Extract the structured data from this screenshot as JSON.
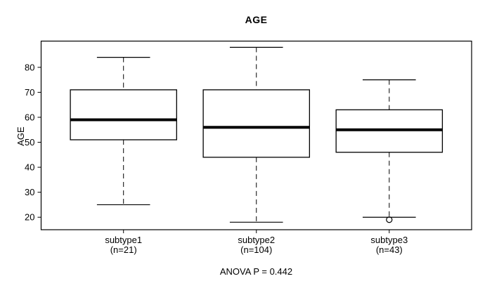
{
  "chart_data": {
    "type": "boxplot",
    "title": "AGE",
    "ylabel": "AGE",
    "footer": "ANOVA P = 0.442",
    "yticks": [
      20,
      30,
      40,
      50,
      60,
      70,
      80
    ],
    "ylim": [
      15,
      90.5
    ],
    "grid": false,
    "categories": [
      "subtype1",
      "subtype2",
      "subtype3"
    ],
    "category_counts": [
      "(n=21)",
      "(n=104)",
      "(n=43)"
    ],
    "series": [
      {
        "name": "subtype1",
        "n": 21,
        "whisker_low": 25,
        "q1": 51,
        "median": 59,
        "q3": 71,
        "whisker_high": 84,
        "outliers": []
      },
      {
        "name": "subtype2",
        "n": 104,
        "whisker_low": 18,
        "q1": 44,
        "median": 56,
        "q3": 71,
        "whisker_high": 88,
        "outliers": []
      },
      {
        "name": "subtype3",
        "n": 43,
        "whisker_low": 20,
        "q1": 46,
        "median": 55,
        "q3": 63,
        "whisker_high": 75,
        "outliers": [
          19
        ]
      }
    ],
    "line_color": "#000000",
    "box_fill": "#ffffff",
    "background": "#ffffff"
  }
}
